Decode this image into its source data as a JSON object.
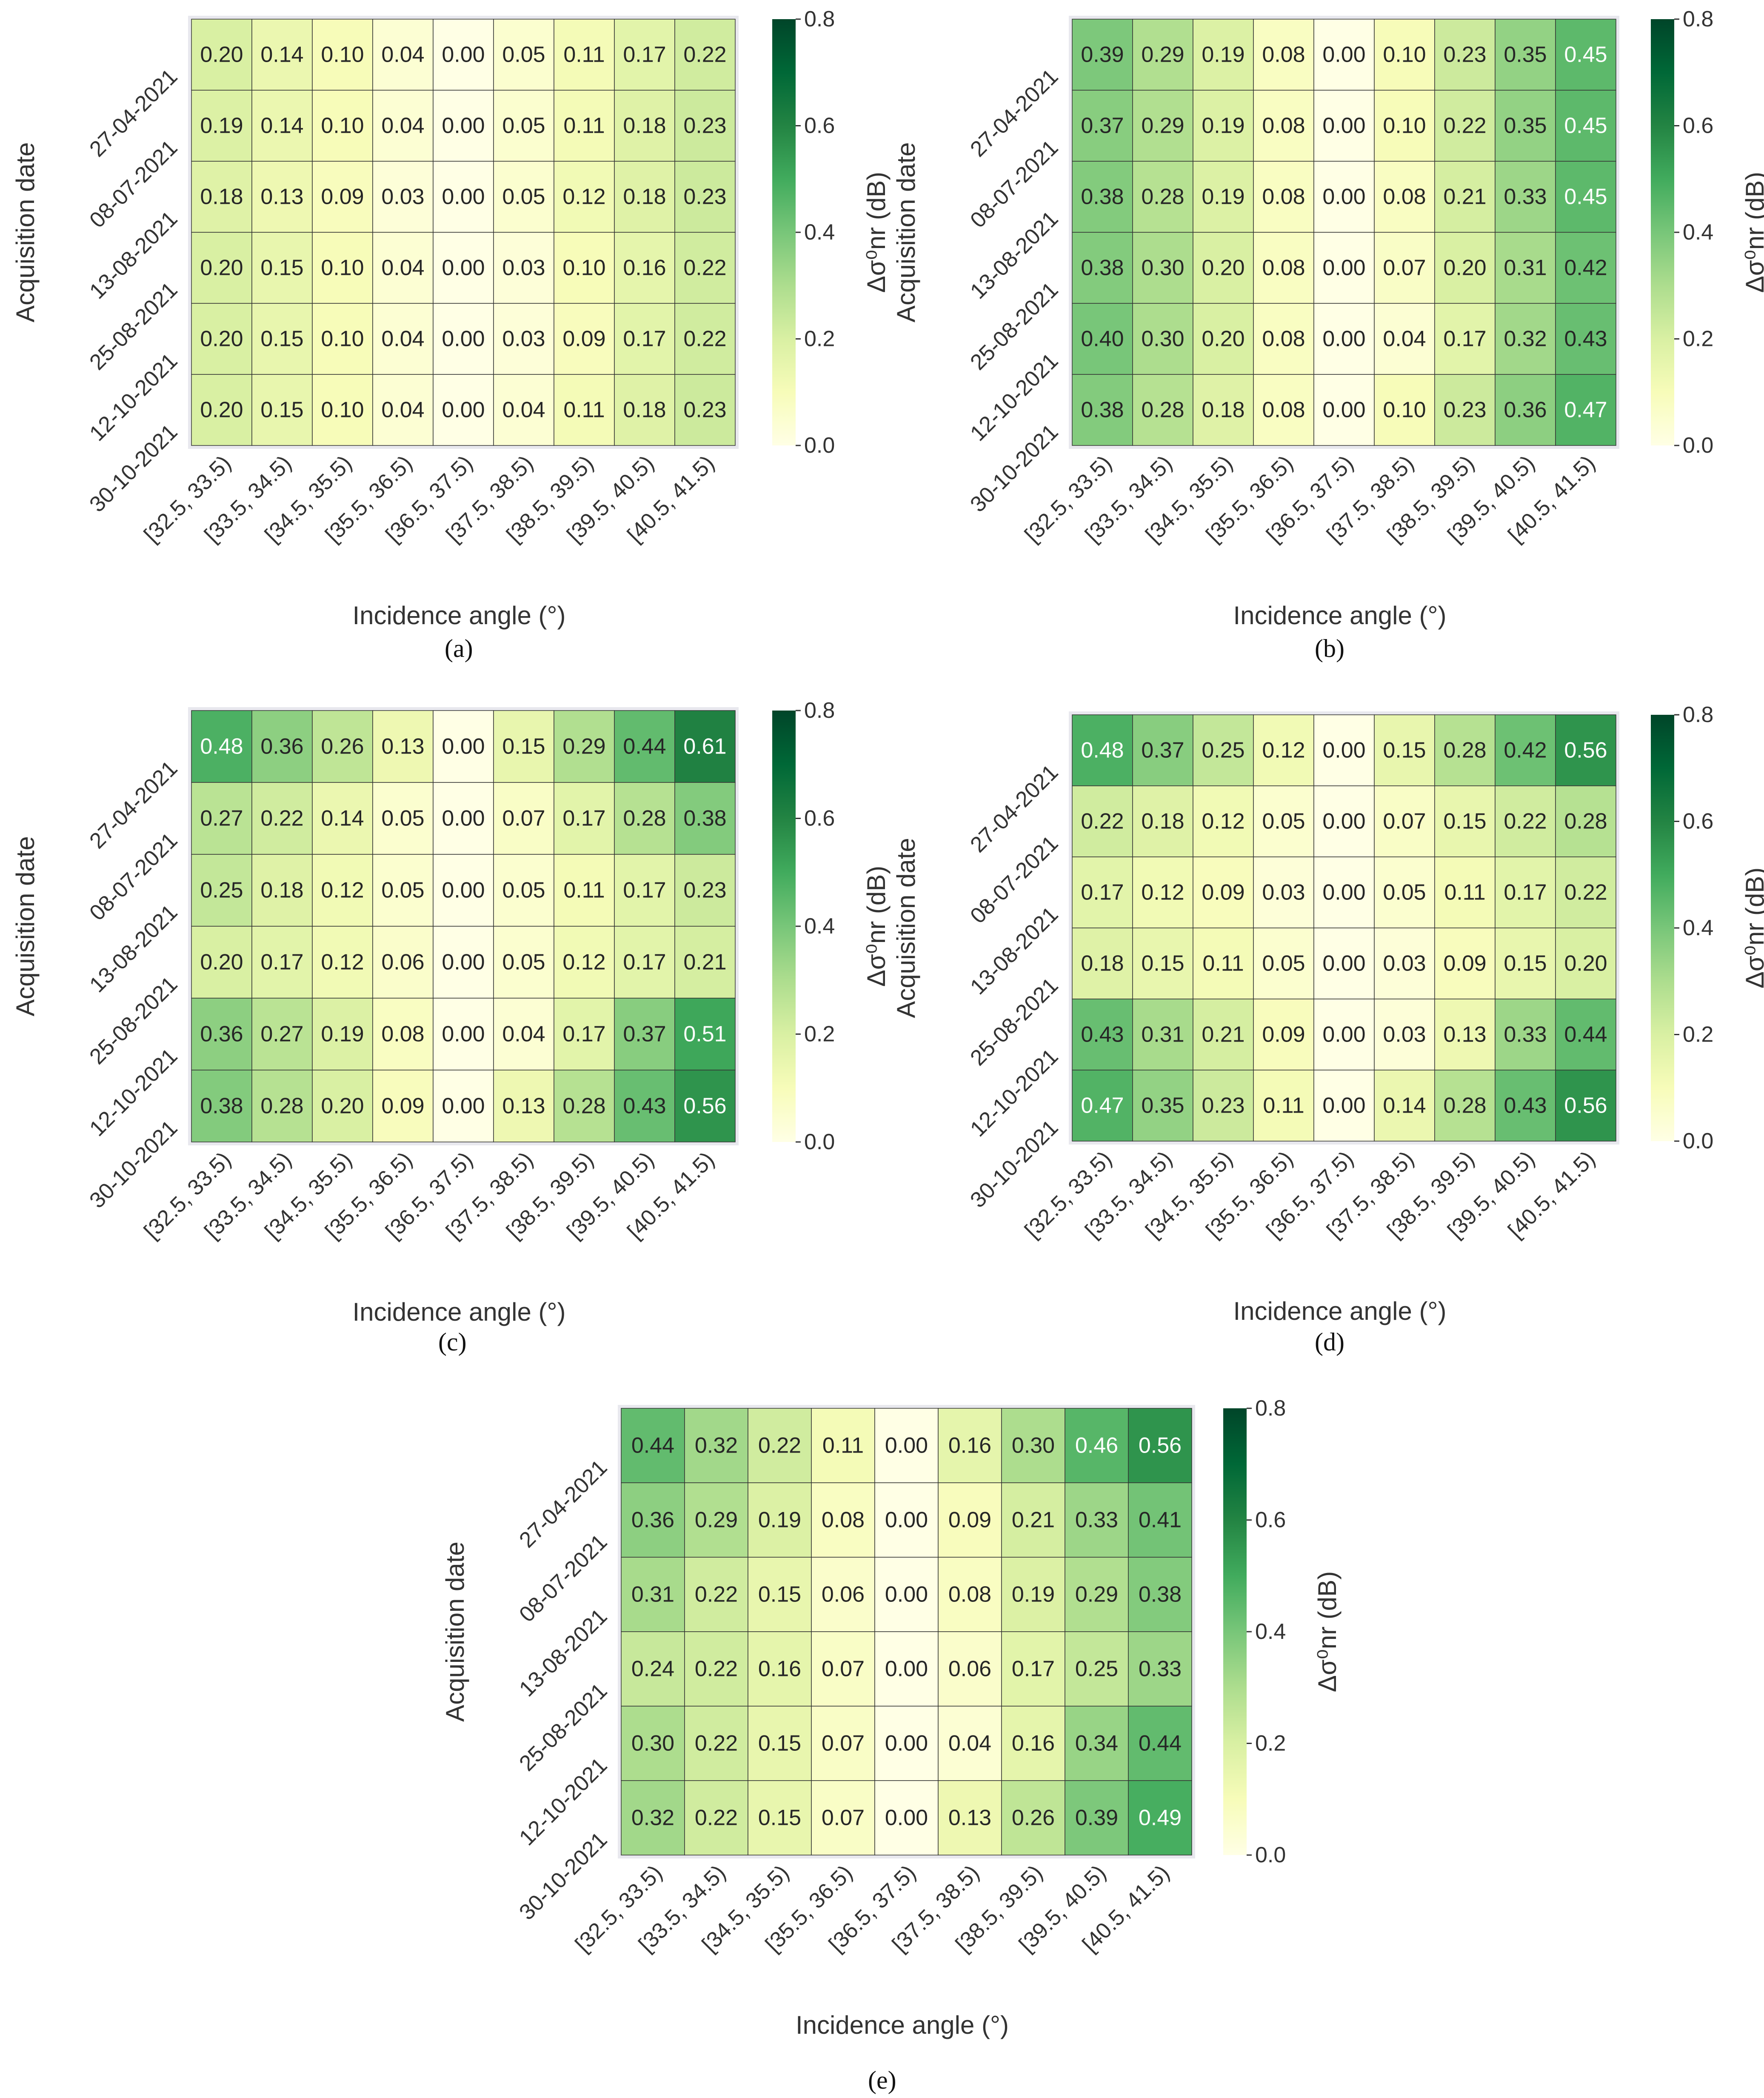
{
  "figure": {
    "colorbar_ticks": [
      "0.0",
      "0.2",
      "0.4",
      "0.6",
      "0.8"
    ],
    "colorbar_label": "Δσ⁰nr (dB)",
    "colormap": [
      "#ffffe5",
      "#f7fcb9",
      "#d9f0a3",
      "#addd8e",
      "#78c679",
      "#41ab5d",
      "#238443",
      "#006837",
      "#004529"
    ]
  },
  "chart_data": [
    {
      "type": "heatmap",
      "caption": "(a)",
      "ylabel": "Acquisition date",
      "xlabel": "Incidence angle (°)",
      "rows": [
        "27-04-2021",
        "08-07-2021",
        "13-08-2021",
        "25-08-2021",
        "12-10-2021",
        "30-10-2021"
      ],
      "columns": [
        "[32.5, 33.5)",
        "[33.5, 34.5)",
        "[34.5, 35.5)",
        "[35.5, 36.5)",
        "[36.5, 37.5)",
        "[37.5, 38.5)",
        "[38.5, 39.5)",
        "[39.5, 40.5)",
        "[40.5, 41.5)"
      ],
      "values": [
        [
          0.2,
          0.14,
          0.1,
          0.04,
          0.0,
          0.05,
          0.11,
          0.17,
          0.22
        ],
        [
          0.19,
          0.14,
          0.1,
          0.04,
          0.0,
          0.05,
          0.11,
          0.18,
          0.23
        ],
        [
          0.18,
          0.13,
          0.09,
          0.03,
          0.0,
          0.05,
          0.12,
          0.18,
          0.23
        ],
        [
          0.2,
          0.15,
          0.1,
          0.04,
          0.0,
          0.03,
          0.1,
          0.16,
          0.22
        ],
        [
          0.2,
          0.15,
          0.1,
          0.04,
          0.0,
          0.03,
          0.09,
          0.17,
          0.22
        ],
        [
          0.2,
          0.15,
          0.1,
          0.04,
          0.0,
          0.04,
          0.11,
          0.18,
          0.23
        ]
      ],
      "vmin": 0.0,
      "vmax": 0.8
    },
    {
      "type": "heatmap",
      "caption": "(b)",
      "ylabel": "Acquisition date",
      "xlabel": "Incidence angle (°)",
      "rows": [
        "27-04-2021",
        "08-07-2021",
        "13-08-2021",
        "25-08-2021",
        "12-10-2021",
        "30-10-2021"
      ],
      "columns": [
        "[32.5, 33.5)",
        "[33.5, 34.5)",
        "[34.5, 35.5)",
        "[35.5, 36.5)",
        "[36.5, 37.5)",
        "[37.5, 38.5)",
        "[38.5, 39.5)",
        "[39.5, 40.5)",
        "[40.5, 41.5)"
      ],
      "values": [
        [
          0.39,
          0.29,
          0.19,
          0.08,
          0.0,
          0.1,
          0.23,
          0.35,
          0.45
        ],
        [
          0.37,
          0.29,
          0.19,
          0.08,
          0.0,
          0.1,
          0.22,
          0.35,
          0.45
        ],
        [
          0.38,
          0.28,
          0.19,
          0.08,
          0.0,
          0.08,
          0.21,
          0.33,
          0.45
        ],
        [
          0.38,
          0.3,
          0.2,
          0.08,
          0.0,
          0.07,
          0.2,
          0.31,
          0.42
        ],
        [
          0.4,
          0.3,
          0.2,
          0.08,
          0.0,
          0.04,
          0.17,
          0.32,
          0.43
        ],
        [
          0.38,
          0.28,
          0.18,
          0.08,
          0.0,
          0.1,
          0.23,
          0.36,
          0.47
        ]
      ],
      "vmin": 0.0,
      "vmax": 0.8
    },
    {
      "type": "heatmap",
      "caption": "(c)",
      "ylabel": "Acquisition date",
      "xlabel": "Incidence angle (°)",
      "rows": [
        "27-04-2021",
        "08-07-2021",
        "13-08-2021",
        "25-08-2021",
        "12-10-2021",
        "30-10-2021"
      ],
      "columns": [
        "[32.5, 33.5)",
        "[33.5, 34.5)",
        "[34.5, 35.5)",
        "[35.5, 36.5)",
        "[36.5, 37.5)",
        "[37.5, 38.5)",
        "[38.5, 39.5)",
        "[39.5, 40.5)",
        "[40.5, 41.5)"
      ],
      "values": [
        [
          0.48,
          0.36,
          0.26,
          0.13,
          0.0,
          0.15,
          0.29,
          0.44,
          0.61
        ],
        [
          0.27,
          0.22,
          0.14,
          0.05,
          0.0,
          0.07,
          0.17,
          0.28,
          0.38
        ],
        [
          0.25,
          0.18,
          0.12,
          0.05,
          0.0,
          0.05,
          0.11,
          0.17,
          0.23
        ],
        [
          0.2,
          0.17,
          0.12,
          0.06,
          0.0,
          0.05,
          0.12,
          0.17,
          0.21
        ],
        [
          0.36,
          0.27,
          0.19,
          0.08,
          0.0,
          0.04,
          0.17,
          0.37,
          0.51
        ],
        [
          0.38,
          0.28,
          0.2,
          0.09,
          0.0,
          0.13,
          0.28,
          0.43,
          0.56
        ]
      ],
      "vmin": 0.0,
      "vmax": 0.8
    },
    {
      "type": "heatmap",
      "caption": "(d)",
      "ylabel": "Acquisition date",
      "xlabel": "Incidence angle (°)",
      "rows": [
        "27-04-2021",
        "08-07-2021",
        "13-08-2021",
        "25-08-2021",
        "12-10-2021",
        "30-10-2021"
      ],
      "columns": [
        "[32.5, 33.5)",
        "[33.5, 34.5)",
        "[34.5, 35.5)",
        "[35.5, 36.5)",
        "[36.5, 37.5)",
        "[37.5, 38.5)",
        "[38.5, 39.5)",
        "[39.5, 40.5)",
        "[40.5, 41.5)"
      ],
      "values": [
        [
          0.48,
          0.37,
          0.25,
          0.12,
          0.0,
          0.15,
          0.28,
          0.42,
          0.56
        ],
        [
          0.22,
          0.18,
          0.12,
          0.05,
          0.0,
          0.07,
          0.15,
          0.22,
          0.28
        ],
        [
          0.17,
          0.12,
          0.09,
          0.03,
          0.0,
          0.05,
          0.11,
          0.17,
          0.22
        ],
        [
          0.18,
          0.15,
          0.11,
          0.05,
          0.0,
          0.03,
          0.09,
          0.15,
          0.2
        ],
        [
          0.43,
          0.31,
          0.21,
          0.09,
          0.0,
          0.03,
          0.13,
          0.33,
          0.44
        ],
        [
          0.47,
          0.35,
          0.23,
          0.11,
          0.0,
          0.14,
          0.28,
          0.43,
          0.56
        ]
      ],
      "vmin": 0.0,
      "vmax": 0.8
    },
    {
      "type": "heatmap",
      "caption": "(e)",
      "ylabel": "Acquisition date",
      "xlabel": "Incidence angle (°)",
      "rows": [
        "27-04-2021",
        "08-07-2021",
        "13-08-2021",
        "25-08-2021",
        "12-10-2021",
        "30-10-2021"
      ],
      "columns": [
        "[32.5, 33.5)",
        "[33.5, 34.5)",
        "[34.5, 35.5)",
        "[35.5, 36.5)",
        "[36.5, 37.5)",
        "[37.5, 38.5)",
        "[38.5, 39.5)",
        "[39.5, 40.5)",
        "[40.5, 41.5)"
      ],
      "values": [
        [
          0.44,
          0.32,
          0.22,
          0.11,
          0.0,
          0.16,
          0.3,
          0.46,
          0.56
        ],
        [
          0.36,
          0.29,
          0.19,
          0.08,
          0.0,
          0.09,
          0.21,
          0.33,
          0.41
        ],
        [
          0.31,
          0.22,
          0.15,
          0.06,
          0.0,
          0.08,
          0.19,
          0.29,
          0.38
        ],
        [
          0.24,
          0.22,
          0.16,
          0.07,
          0.0,
          0.06,
          0.17,
          0.25,
          0.33
        ],
        [
          0.3,
          0.22,
          0.15,
          0.07,
          0.0,
          0.04,
          0.16,
          0.34,
          0.44
        ],
        [
          0.32,
          0.22,
          0.15,
          0.07,
          0.0,
          0.13,
          0.26,
          0.39,
          0.49
        ]
      ],
      "vmin": 0.0,
      "vmax": 0.8
    }
  ]
}
